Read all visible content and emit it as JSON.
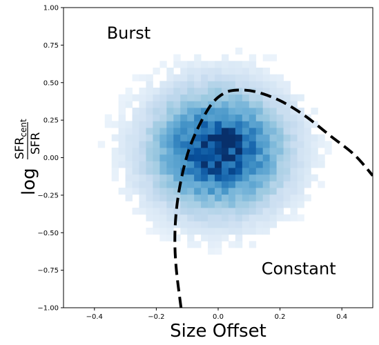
{
  "chart_data": {
    "type": "heatmap",
    "xlabel": "Size Offset",
    "ylabel": {
      "prefix": "log",
      "numerator": "SFR",
      "numerator_subscript": "cent",
      "denominator": "SFR"
    },
    "xlim": [
      -0.5,
      0.5
    ],
    "ylim": [
      -1.0,
      1.0
    ],
    "x_ticks": [
      -0.4,
      -0.2,
      0.0,
      0.2,
      0.4
    ],
    "x_tick_labels": [
      "−0.4",
      "−0.2",
      "0.0",
      "0.2",
      "0.4"
    ],
    "y_ticks": [
      1.0,
      0.75,
      0.5,
      0.25,
      0.0,
      -0.25,
      -0.5,
      -0.75,
      -1.0
    ],
    "y_tick_labels": [
      "1.00",
      "0.75",
      "0.50",
      "0.25",
      "0.00",
      "−0.25",
      "−0.50",
      "−0.75",
      "−1.00"
    ],
    "grid": false,
    "colormap": "Blues",
    "density_distribution": {
      "peak_x": 0.0,
      "peak_y": 0.05,
      "sigma_x": 0.12,
      "sigma_y": 0.22,
      "bins_x": 45,
      "bins_y": 45
    },
    "annotations": [
      {
        "text": "Burst",
        "x": -0.36,
        "y": 0.83
      },
      {
        "text": "Constant",
        "x": 0.14,
        "y": -0.74
      }
    ],
    "dividing_curve": {
      "style": "dashed",
      "color": "#000000",
      "points": [
        [
          -0.12,
          -1.0
        ],
        [
          -0.135,
          -0.75
        ],
        [
          -0.14,
          -0.55
        ],
        [
          -0.135,
          -0.35
        ],
        [
          -0.12,
          -0.15
        ],
        [
          -0.095,
          0.05
        ],
        [
          -0.06,
          0.22
        ],
        [
          -0.02,
          0.36
        ],
        [
          0.02,
          0.43
        ],
        [
          0.06,
          0.45
        ],
        [
          0.12,
          0.44
        ],
        [
          0.2,
          0.38
        ],
        [
          0.28,
          0.28
        ],
        [
          0.36,
          0.15
        ],
        [
          0.44,
          0.02
        ],
        [
          0.5,
          -0.12
        ]
      ]
    }
  }
}
